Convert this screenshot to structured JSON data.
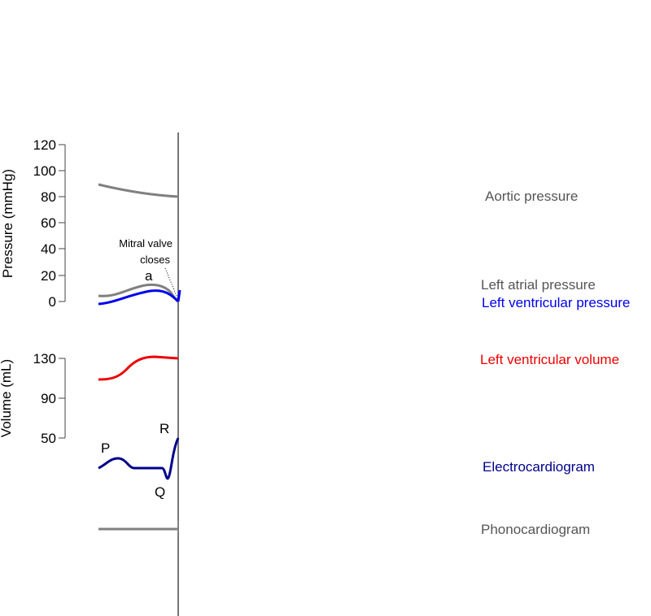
{
  "pressure_axis": {
    "label": "Pressure (mmHg)",
    "ticks": [
      "120",
      "100",
      "80",
      "60",
      "40",
      "20",
      "0"
    ]
  },
  "volume_axis": {
    "label": "Volume (mL)",
    "ticks": [
      "130",
      "90",
      "50"
    ]
  },
  "annotations": {
    "mitral_line1": "Mitral valve",
    "mitral_line2": "closes",
    "atrial_wave": "a"
  },
  "ecg_labels": {
    "p": "P",
    "q": "Q",
    "r": "R"
  },
  "legend": {
    "aortic": "Aortic pressure",
    "left_atrial": "Left atrial pressure",
    "left_ventricular_pressure": "Left ventricular pressure",
    "left_ventricular_volume": "Left ventricular volume",
    "ecg": "Electrocardiogram",
    "phono": "Phonocardiogram"
  },
  "colors": {
    "aortic": "#808080",
    "left_atrial": "#808080",
    "left_ventricular_pressure": "#0000ee",
    "left_ventricular_volume": "#ee0000",
    "ecg": "#00008b",
    "phono": "#808080",
    "legend_gray": "#555555"
  }
}
